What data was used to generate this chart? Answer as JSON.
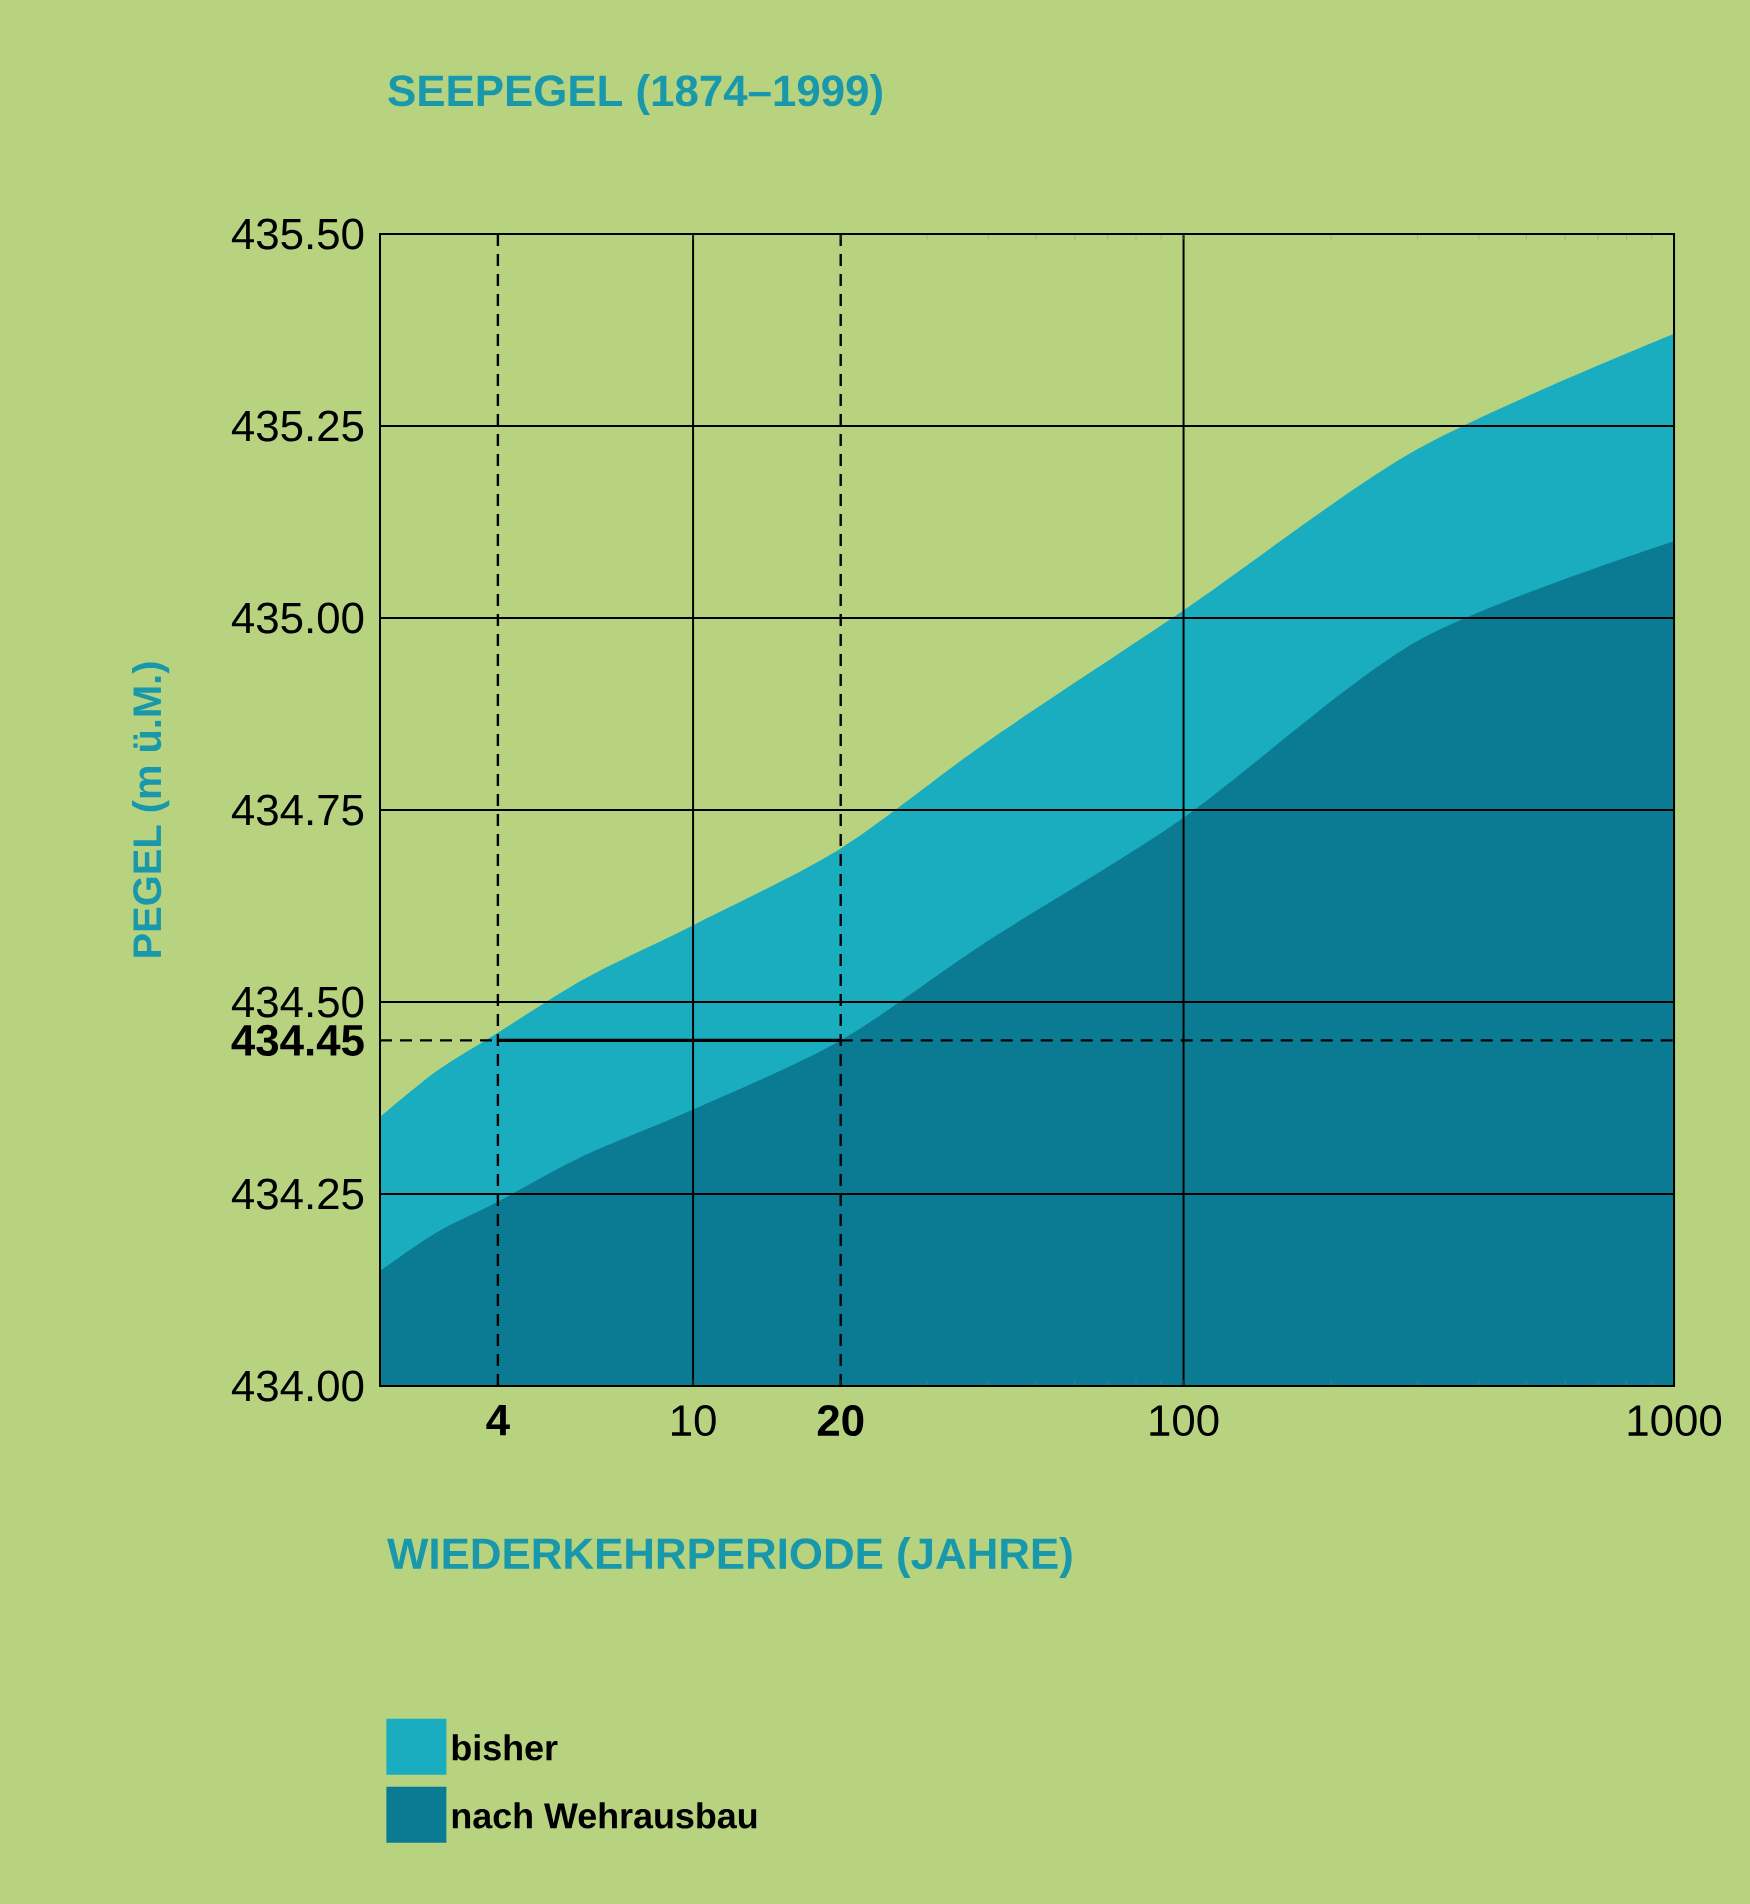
{
  "chart_data": {
    "type": "area",
    "title": "SEEPEGEL (1874–1999)",
    "xlabel": "WIEDERKEHRPERIODE (JAHRE)",
    "ylabel": "PEGEL (m ü.M.)",
    "log": "x",
    "xlim": [
      2.3,
      1000
    ],
    "xticks": [
      4,
      10,
      20,
      100,
      1000
    ],
    "ylim": [
      434,
      435.5
    ],
    "yticks": [
      {
        "value": 434,
        "label": "434.00"
      },
      {
        "value": 434.25,
        "label": "434.25"
      },
      {
        "value": 434.45,
        "label": "434.45"
      },
      {
        "value": 434.5,
        "label": "434.50"
      },
      {
        "value": 434.75,
        "label": "434.75"
      },
      {
        "value": 435,
        "label": "435.00"
      },
      {
        "value": 435.25,
        "label": "435.25"
      },
      {
        "value": 435.5,
        "label": "435.50"
      }
    ],
    "grid": true,
    "legend": "bottom left",
    "series": [
      {
        "name": "bisher",
        "color": "#19adbf",
        "x": [
          2.3,
          3,
          4,
          6,
          10,
          20,
          40,
          100,
          300,
          1000
        ],
        "values": [
          434.35,
          434.41,
          434.46,
          434.53,
          434.6,
          434.7,
          434.84,
          435.01,
          435.22,
          435.37
        ]
      },
      {
        "name": "nach Wehrausbau",
        "color": "#0b7b93",
        "x": [
          2.3,
          3,
          4,
          6,
          10,
          20,
          40,
          100,
          300,
          1000
        ],
        "values": [
          434.15,
          434.2,
          434.24,
          434.3,
          434.36,
          434.45,
          434.58,
          434.74,
          434.97,
          435.1
        ]
      },
      {
        "type": "line",
        "color": "#000000",
        "x": [
          4,
          20
        ],
        "values": [
          434.45,
          434.45
        ]
      }
    ],
    "ref_lines": [
      {
        "axis": "x",
        "value": 4,
        "line_style": "dashed"
      },
      {
        "axis": "x",
        "value": 20,
        "line_style": "dashed"
      },
      {
        "axis": "y",
        "value": 434.45,
        "line_style": "dashed"
      }
    ]
  }
}
